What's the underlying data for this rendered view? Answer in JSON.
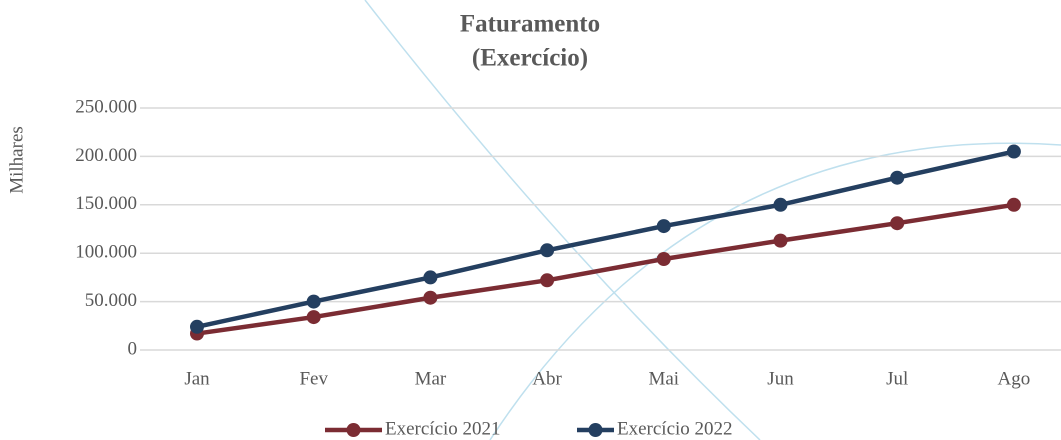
{
  "chart_data": {
    "type": "line",
    "title": "Faturamento",
    "subtitle": "(Exercício)",
    "y_label": "Milhares",
    "categories": [
      "Jan",
      "Fev",
      "Mar",
      "Abr",
      "Mai",
      "Jun",
      "Jul",
      "Ago"
    ],
    "series": [
      {
        "name": "Exercício 2021",
        "color": "#7b2c33",
        "values": [
          17000,
          34000,
          54000,
          72000,
          94000,
          113000,
          131000,
          150000
        ]
      },
      {
        "name": "Exercício 2022",
        "color": "#243f60",
        "values": [
          24000,
          50000,
          75000,
          103000,
          128000,
          150000,
          178000,
          205000
        ]
      }
    ],
    "ylim": [
      0,
      250000
    ],
    "yticks": [
      0,
      {
        "value": 50000,
        "label": "50.000"
      },
      {
        "value": 100000,
        "label": "100.000"
      },
      {
        "value": 150000,
        "label": "150.000"
      },
      {
        "value": 200000,
        "label": "200.000"
      },
      {
        "value": 250000,
        "label": "250.000"
      }
    ],
    "grid": true,
    "legend": "bottom"
  }
}
